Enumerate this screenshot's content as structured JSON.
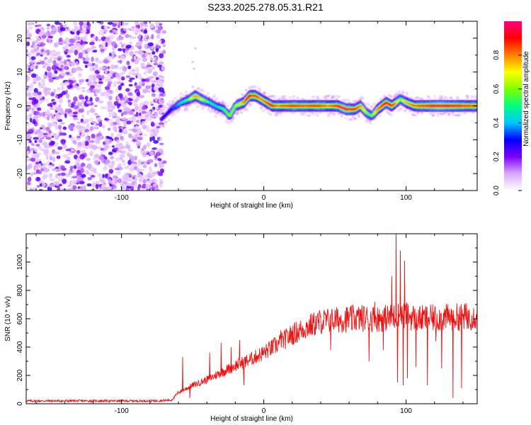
{
  "figure_title": "S233.2025.278.05.31.R21",
  "chart_data": [
    {
      "type": "heatmap",
      "title": "S233.2025.278.05.31.R21",
      "xlabel": "Height of straight line (km)",
      "ylabel": "Frequency (Hz)",
      "xlim": [
        -167,
        150
      ],
      "ylim": [
        -25,
        25
      ],
      "xticks": [
        -100,
        0,
        100
      ],
      "yticks": [
        -20,
        -10,
        0,
        10,
        20
      ],
      "colorbar": {
        "label": "Normalized spectral amplitude",
        "range": [
          0,
          1
        ],
        "ticks": [
          0.0,
          0.2,
          0.4,
          0.6,
          0.8
        ],
        "colormap": [
          "#ffffff",
          "#d8a8ff",
          "#8000ff",
          "#0000ff",
          "#00c8ff",
          "#00ff80",
          "#80ff00",
          "#ffff00",
          "#ff8000",
          "#ff0000",
          "#ff0080"
        ]
      },
      "noise_region_x": [
        -167,
        -72
      ],
      "signal_ridge": {
        "x": [
          -72,
          -65,
          -58,
          -52,
          -48,
          -44,
          -38,
          -34,
          -28,
          -24,
          -20,
          -14,
          -10,
          -6,
          -2,
          2,
          6,
          10,
          16,
          22,
          30,
          38,
          46,
          52,
          58,
          64,
          68,
          72,
          76,
          80,
          86,
          90,
          96,
          100,
          106,
          112,
          120,
          130,
          140,
          150
        ],
        "freq": [
          -4,
          -1,
          1,
          2,
          3,
          2,
          1,
          0,
          -1,
          -3,
          0,
          1,
          3,
          3,
          2,
          1,
          0,
          0,
          0,
          0,
          0,
          0,
          0,
          0,
          -1,
          -1,
          0,
          -2,
          -3,
          -1,
          1,
          0,
          2,
          1,
          0,
          0,
          0,
          0,
          0,
          0
        ],
        "amp": [
          0.25,
          0.3,
          0.45,
          0.6,
          0.8,
          0.7,
          0.5,
          0.45,
          0.55,
          0.6,
          0.6,
          0.8,
          0.95,
          0.9,
          0.8,
          0.85,
          0.95,
          0.85,
          0.9,
          0.95,
          0.9,
          0.95,
          0.85,
          0.95,
          1.0,
          0.9,
          0.8,
          0.6,
          0.55,
          0.8,
          0.95,
          0.9,
          0.6,
          0.75,
          0.85,
          0.95,
          1.0,
          1.0,
          0.95,
          0.9
        ]
      }
    },
    {
      "type": "line",
      "xlabel": "Height of straight line (km)",
      "ylabel": "SNR (10 * v/v)",
      "xlim": [
        -167,
        150
      ],
      "ylim": [
        0,
        1200
      ],
      "xticks": [
        -100,
        0,
        100
      ],
      "yticks": [
        0,
        200,
        400,
        600,
        800,
        1000
      ],
      "series": [
        {
          "name": "SNR",
          "color": "#ee1111",
          "trend_x": [
            -167,
            -80,
            -65,
            -60,
            -50,
            -40,
            -30,
            -20,
            -10,
            0,
            10,
            20,
            30,
            40,
            50,
            60,
            70,
            80,
            90,
            95,
            100,
            105,
            110,
            120,
            130,
            140,
            150
          ],
          "trend_y": [
            20,
            20,
            25,
            80,
            130,
            170,
            220,
            270,
            310,
            360,
            420,
            490,
            540,
            580,
            590,
            600,
            605,
            600,
            610,
            620,
            620,
            610,
            600,
            605,
            610,
            615,
            620
          ],
          "spikes_x": [
            -57,
            -52,
            -38,
            -30,
            -23,
            -17,
            -14,
            -5,
            12,
            30,
            47,
            62,
            74,
            78,
            84,
            90,
            93,
            94,
            96,
            98,
            99,
            101,
            104,
            107,
            115,
            121,
            125,
            133,
            139,
            143
          ],
          "spikes_y": [
            330,
            40,
            360,
            430,
            400,
            450,
            130,
            340,
            520,
            540,
            380,
            520,
            300,
            720,
            380,
            900,
            1200,
            150,
            1080,
            130,
            1010,
            180,
            560,
            260,
            130,
            440,
            250,
            40,
            110,
            530
          ]
        }
      ]
    }
  ]
}
